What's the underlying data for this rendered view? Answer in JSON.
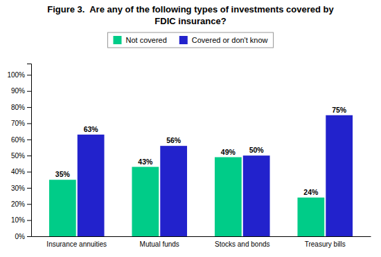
{
  "chart_data": {
    "type": "bar",
    "title": "Figure 3.  Are any of the following types of investments covered by\nFDIC insurance?",
    "categories": [
      "Insurance annuities",
      "Mutual funds",
      "Stocks and bonds",
      "Treasury bills"
    ],
    "series": [
      {
        "name": "Not covered",
        "color": "#00CC88",
        "values": [
          35,
          43,
          49,
          24
        ],
        "value_labels": [
          "35%",
          "43%",
          "49%",
          "24%"
        ]
      },
      {
        "name": "Covered or don't know",
        "color": "#2222CC",
        "values": [
          63,
          56,
          50,
          75
        ],
        "value_labels": [
          "63%",
          "56%",
          "50%",
          "75%"
        ]
      }
    ],
    "ylim": [
      0,
      107
    ],
    "yticks": [
      {
        "value": 0,
        "label": "0%"
      },
      {
        "value": 10,
        "label": "10%"
      },
      {
        "value": 20,
        "label": "20%"
      },
      {
        "value": 30,
        "label": "30%"
      },
      {
        "value": 40,
        "label": "40%"
      },
      {
        "value": 50,
        "label": "50%"
      },
      {
        "value": 60,
        "label": "60%"
      },
      {
        "value": 70,
        "label": "70%"
      },
      {
        "value": 80,
        "label": "80%"
      },
      {
        "value": 90,
        "label": "90%"
      },
      {
        "value": 100,
        "label": "100%"
      }
    ],
    "data_labels": true,
    "grid": false,
    "legend": "top"
  }
}
